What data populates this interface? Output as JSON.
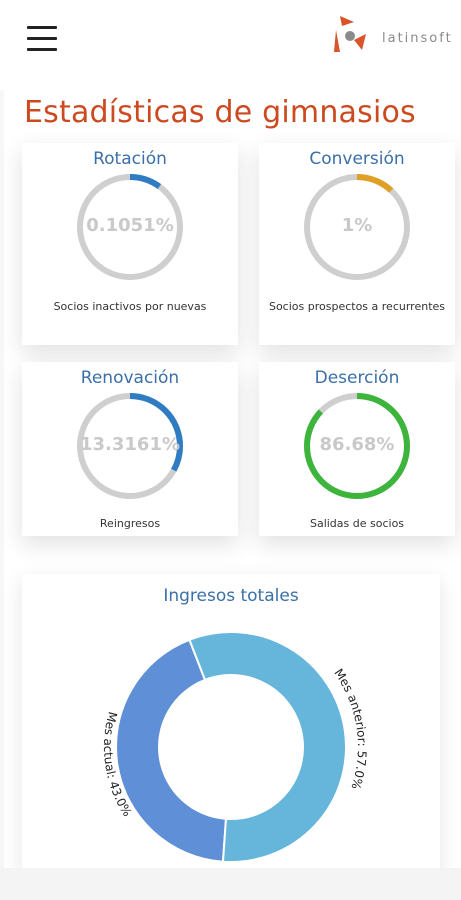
{
  "header": {
    "menu_icon": "hamburger-menu-icon",
    "logo_text": "latinsoft"
  },
  "page": {
    "title": "Estadísticas de gimnasios"
  },
  "colors": {
    "title": "#cc4a1f",
    "card_title": "#3a6fa8",
    "track": "#cfcfcf",
    "blue": "#2f7cc2",
    "orange": "#e0a025",
    "green": "#3db53d",
    "donut_dark": "#5f8fd6",
    "donut_light": "#66b6db"
  },
  "cards": [
    {
      "title": "Rotación",
      "value": "0.1051%",
      "fraction": 0.1,
      "color": "#2f7cc2",
      "desc": "Socios inactivos por nuevas"
    },
    {
      "title": "Conversión",
      "value": "1%",
      "fraction": 0.12,
      "color": "#e0a025",
      "desc": "Socios prospectos a recurrentes"
    },
    {
      "title": "Renovación",
      "value": "13.3161%",
      "fraction": 0.33,
      "color": "#2f7cc2",
      "desc": "Reingresos"
    },
    {
      "title": "Deserción",
      "value": "86.68%",
      "fraction": 0.87,
      "color": "#3db53d",
      "desc": "Salidas de socios"
    }
  ],
  "chart_data": {
    "type": "pie",
    "title": "Ingresos totales",
    "categories": [
      "Mes actual",
      "Mes anterior"
    ],
    "values": [
      43.0,
      57.0
    ],
    "labels": [
      "Mes actual: 43.0%",
      "Mes anterior: 57.0%"
    ],
    "colors": [
      "#5f8fd6",
      "#66b6db"
    ]
  }
}
